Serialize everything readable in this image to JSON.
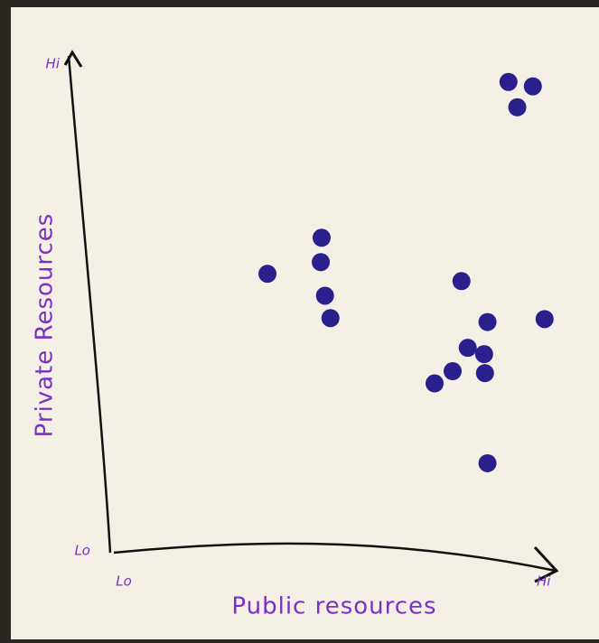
{
  "chart_data": {
    "type": "scatter",
    "x_label": "Public resources",
    "y_label": "Private Resources",
    "xlim": [
      0,
      10.5
    ],
    "ylim": [
      0,
      10.2
    ],
    "xticks": [
      {
        "value": 0,
        "label": "Lo"
      },
      {
        "value": 10,
        "label": "Hi"
      }
    ],
    "yticks": [
      {
        "value": 0,
        "label": "Lo"
      },
      {
        "value": 10,
        "label": "Hi"
      }
    ],
    "color": "#2a1f8c",
    "x": [
      9.42,
      10.0,
      9.63,
      4.97,
      4.95,
      3.68,
      5.05,
      5.18,
      8.3,
      8.92,
      10.28,
      8.45,
      8.84,
      8.09,
      7.66,
      8.86,
      8.92
    ],
    "values": [
      9.63,
      9.54,
      9.11,
      6.43,
      5.93,
      5.69,
      5.24,
      4.78,
      5.54,
      4.7,
      4.76,
      4.17,
      4.04,
      3.69,
      3.44,
      3.65,
      1.8
    ]
  }
}
